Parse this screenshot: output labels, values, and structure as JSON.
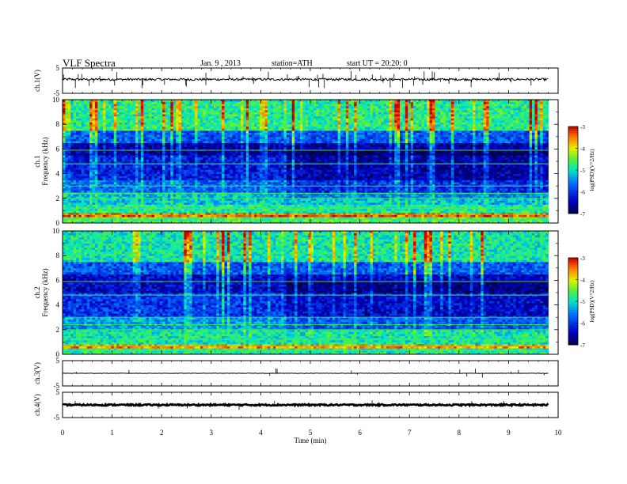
{
  "header": {
    "title": "VLF Spectra",
    "date": "Jan. 9 , 2013",
    "station": "station=ATH",
    "start": "start UT = 20:20: 0"
  },
  "chart_data": [
    {
      "type": "line",
      "name": "ch1-voltage",
      "ylabel": "ch.1(V)",
      "ylim": [
        -5,
        5
      ],
      "yticks": [
        "5",
        "-5"
      ],
      "xlim": [
        0,
        10
      ],
      "data_end": 9.8,
      "baseline": 0.5,
      "note_values": "dense waveform, approx constant level ~0.5 V with spikes"
    },
    {
      "type": "heatmap",
      "name": "ch1-spectrogram",
      "xlabel": "",
      "ylabel": "Frequency (kHz)",
      "ylabel2": "ch.1",
      "xlim": [
        0,
        10
      ],
      "ylim": [
        0,
        10
      ],
      "yticks": [
        0,
        2,
        4,
        6,
        8,
        10
      ],
      "data_end": 9.8,
      "colorbar": {
        "label": "log(PSD)(V^2/Hz)",
        "range": [
          -7,
          -3
        ],
        "ticks": [
          "-3",
          "-4",
          "-5",
          "-6",
          "-7"
        ]
      },
      "bands_logpsd": [
        {
          "f": [
            0,
            0.5
          ],
          "v": -4.6
        },
        {
          "f": [
            0.5,
            0.9
          ],
          "v": -3.4
        },
        {
          "f": [
            0.9,
            1.5
          ],
          "v": -4.8
        },
        {
          "f": [
            1.5,
            2.5
          ],
          "v": -5.2
        },
        {
          "f": [
            2.5,
            3.5
          ],
          "v": -5.7
        },
        {
          "f": [
            3.5,
            5.5
          ],
          "v": -6.2
        },
        {
          "f": [
            5.5,
            6.5
          ],
          "v": -6.6
        },
        {
          "f": [
            6.5,
            7.5
          ],
          "v": -5.8
        },
        {
          "f": [
            7.5,
            10
          ],
          "v": -4.8
        }
      ]
    },
    {
      "type": "heatmap",
      "name": "ch2-spectrogram",
      "xlabel": "",
      "ylabel": "Frequency (kHz)",
      "ylabel2": "ch.2",
      "xlim": [
        0,
        10
      ],
      "ylim": [
        0,
        10
      ],
      "yticks": [
        0,
        2,
        4,
        6,
        8,
        10
      ],
      "data_end": 9.8,
      "colorbar": {
        "label": "log(PSD)(V^2/Hz)",
        "range": [
          -7,
          -3
        ],
        "ticks": [
          "-3",
          "-4",
          "-5",
          "-6",
          "-7"
        ]
      },
      "bands_logpsd": [
        {
          "f": [
            0,
            0.5
          ],
          "v": -4.8
        },
        {
          "f": [
            0.5,
            0.9
          ],
          "v": -3.6
        },
        {
          "f": [
            0.9,
            2.0
          ],
          "v": -4.9
        },
        {
          "f": [
            2.0,
            3.0
          ],
          "v": -5.4
        },
        {
          "f": [
            3.0,
            5.0
          ],
          "v": -6.0
        },
        {
          "f": [
            5.0,
            6.5
          ],
          "v": -6.4
        },
        {
          "f": [
            6.5,
            7.5
          ],
          "v": -5.8
        },
        {
          "f": [
            7.5,
            10
          ],
          "v": -4.9
        }
      ]
    },
    {
      "type": "line",
      "name": "ch3-voltage",
      "ylabel": "ch.3(V)",
      "ylim": [
        -5,
        5
      ],
      "yticks": [
        "5",
        "-5"
      ],
      "xlim": [
        0,
        10
      ],
      "data_end": 9.8,
      "baseline": 0
    },
    {
      "type": "line",
      "name": "ch4-voltage",
      "ylabel": "ch.4(V)",
      "ylim": [
        -5,
        5
      ],
      "yticks": [
        "5",
        "-5"
      ],
      "xlim": [
        0,
        10
      ],
      "data_end": 9.8,
      "baseline": 0
    }
  ],
  "xaxis": {
    "label": "Time (min)",
    "ticks": [
      "0",
      "1",
      "2",
      "3",
      "4",
      "5",
      "6",
      "7",
      "8",
      "9",
      "10"
    ]
  }
}
